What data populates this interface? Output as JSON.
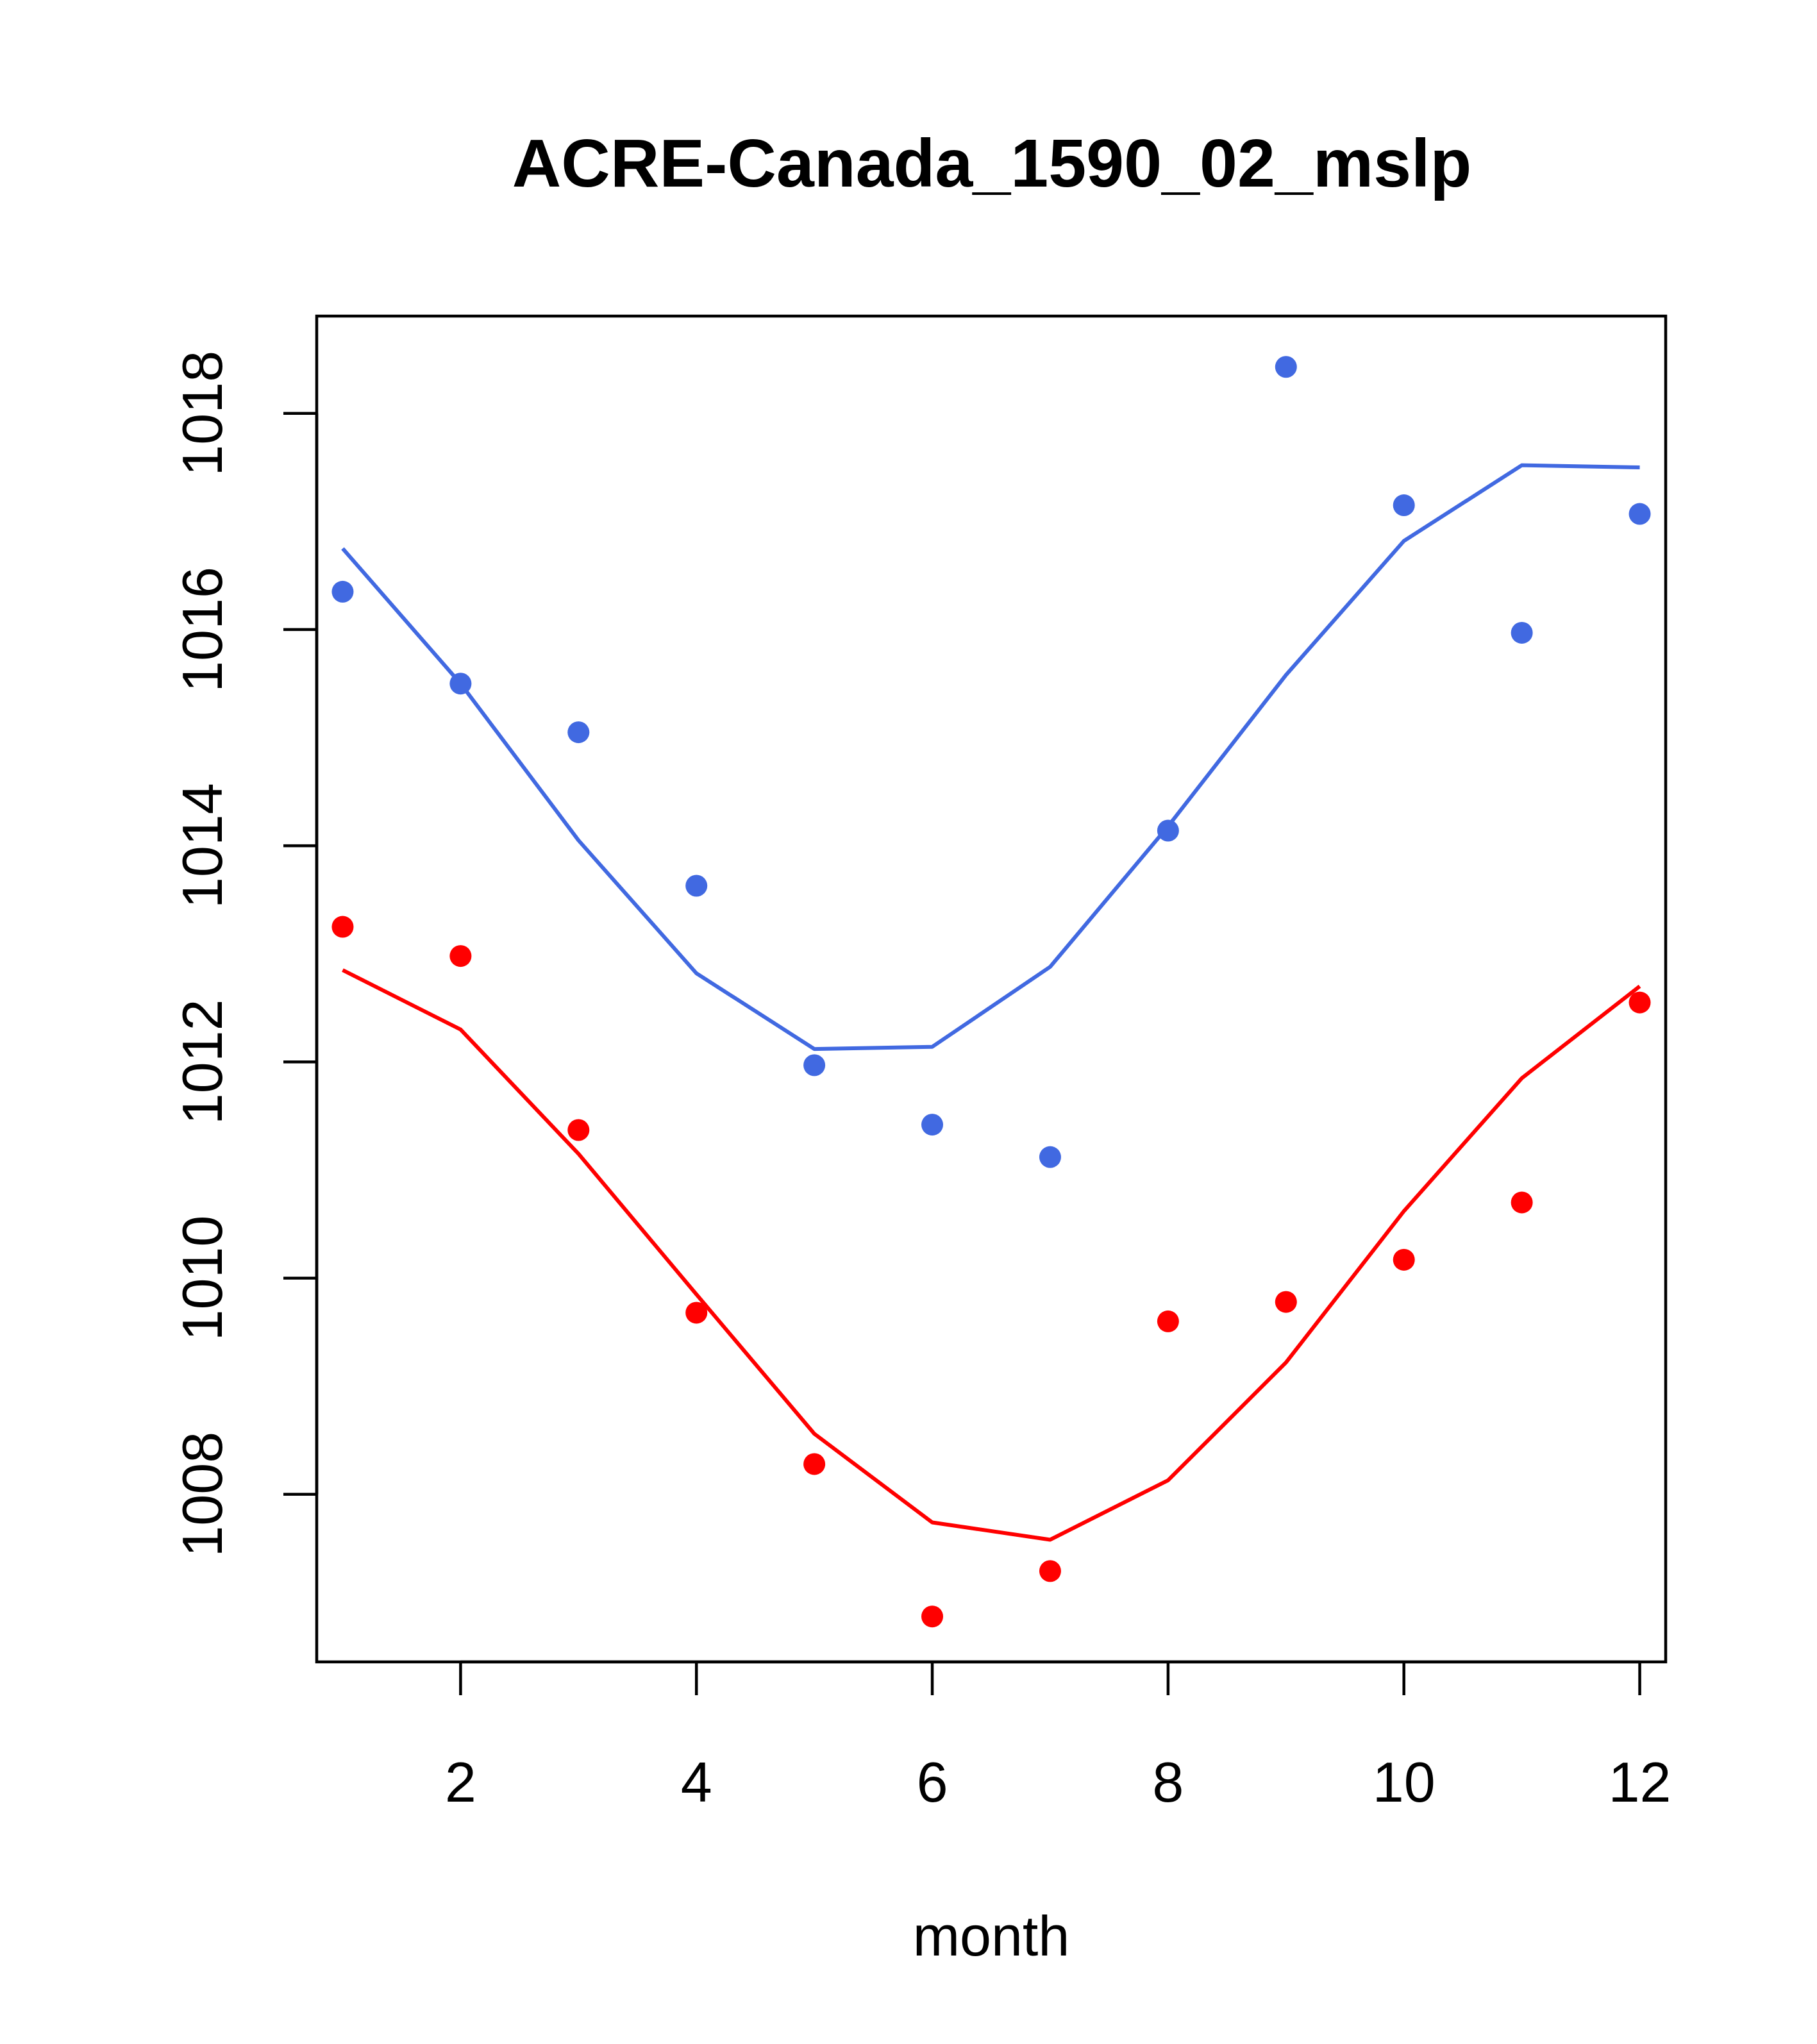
{
  "chart_data": {
    "type": "scatter",
    "title": "ACRE-Canada_1590_02_mslp",
    "xlabel": "month",
    "ylabel": "",
    "xlim": [
      0.78,
      12.22
    ],
    "ylim": [
      1006.45,
      1018.9
    ],
    "x_ticks": [
      2,
      4,
      6,
      8,
      10,
      12
    ],
    "y_ticks": [
      1008,
      1010,
      1012,
      1014,
      1016,
      1018
    ],
    "x": [
      1,
      2,
      3,
      4,
      5,
      6,
      7,
      8,
      9,
      10,
      11,
      12
    ],
    "series": [
      {
        "name": "blue-points",
        "kind": "points",
        "color": "#4169E1",
        "values": [
          1016.35,
          1015.5,
          1015.05,
          1013.63,
          1011.97,
          1011.42,
          1011.12,
          1014.14,
          1018.43,
          1017.15,
          1015.97,
          1017.07
        ]
      },
      {
        "name": "blue-line",
        "kind": "line",
        "color": "#4169E1",
        "values": [
          1016.75,
          1015.5,
          1014.05,
          1012.82,
          1012.12,
          1012.14,
          1012.88,
          1014.18,
          1015.58,
          1016.82,
          1017.52,
          1017.5
        ]
      },
      {
        "name": "red-points",
        "kind": "points",
        "color": "#FF0000",
        "values": [
          1013.25,
          1012.98,
          1011.37,
          1009.68,
          1008.28,
          1006.87,
          1007.29,
          1009.6,
          1009.78,
          1010.17,
          1010.7,
          1012.55
        ]
      },
      {
        "name": "red-line",
        "kind": "line",
        "color": "#FF0000",
        "values": [
          1012.85,
          1012.3,
          1011.15,
          1009.85,
          1008.56,
          1007.74,
          1007.58,
          1008.13,
          1009.22,
          1010.62,
          1011.85,
          1012.7
        ]
      }
    ]
  }
}
